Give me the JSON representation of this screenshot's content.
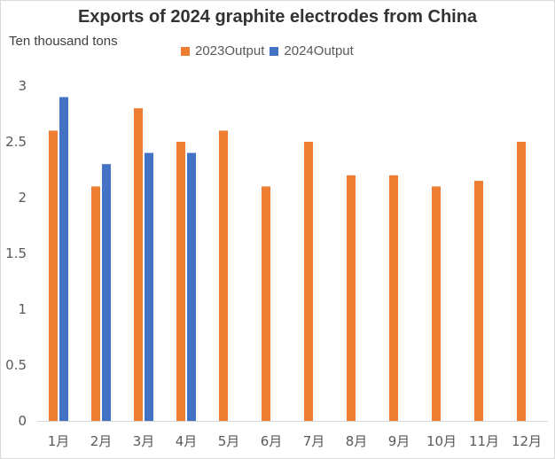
{
  "chart_data": {
    "type": "bar",
    "title": "Exports of 2024 graphite electrodes from China",
    "ylabel": "Ten thousand tons",
    "xlabel": "",
    "categories": [
      "1月",
      "2月",
      "3月",
      "4月",
      "5月",
      "6月",
      "7月",
      "8月",
      "9月",
      "10月",
      "11月",
      "12月"
    ],
    "series": [
      {
        "name": "2023Output",
        "color": "#ED7D31",
        "values": [
          2.6,
          2.1,
          2.8,
          2.5,
          2.6,
          2.1,
          2.5,
          2.2,
          2.2,
          2.1,
          2.15,
          2.5
        ]
      },
      {
        "name": "2024Output",
        "color": "#4472C4",
        "values": [
          2.9,
          2.3,
          2.4,
          2.4,
          null,
          null,
          null,
          null,
          null,
          null,
          null,
          null
        ]
      }
    ],
    "ylim": [
      0,
      3
    ],
    "yticks": [
      "0",
      "0.5",
      "1",
      "1.5",
      "2",
      "2.5",
      "3"
    ],
    "grid": false,
    "legend_position": "top"
  }
}
